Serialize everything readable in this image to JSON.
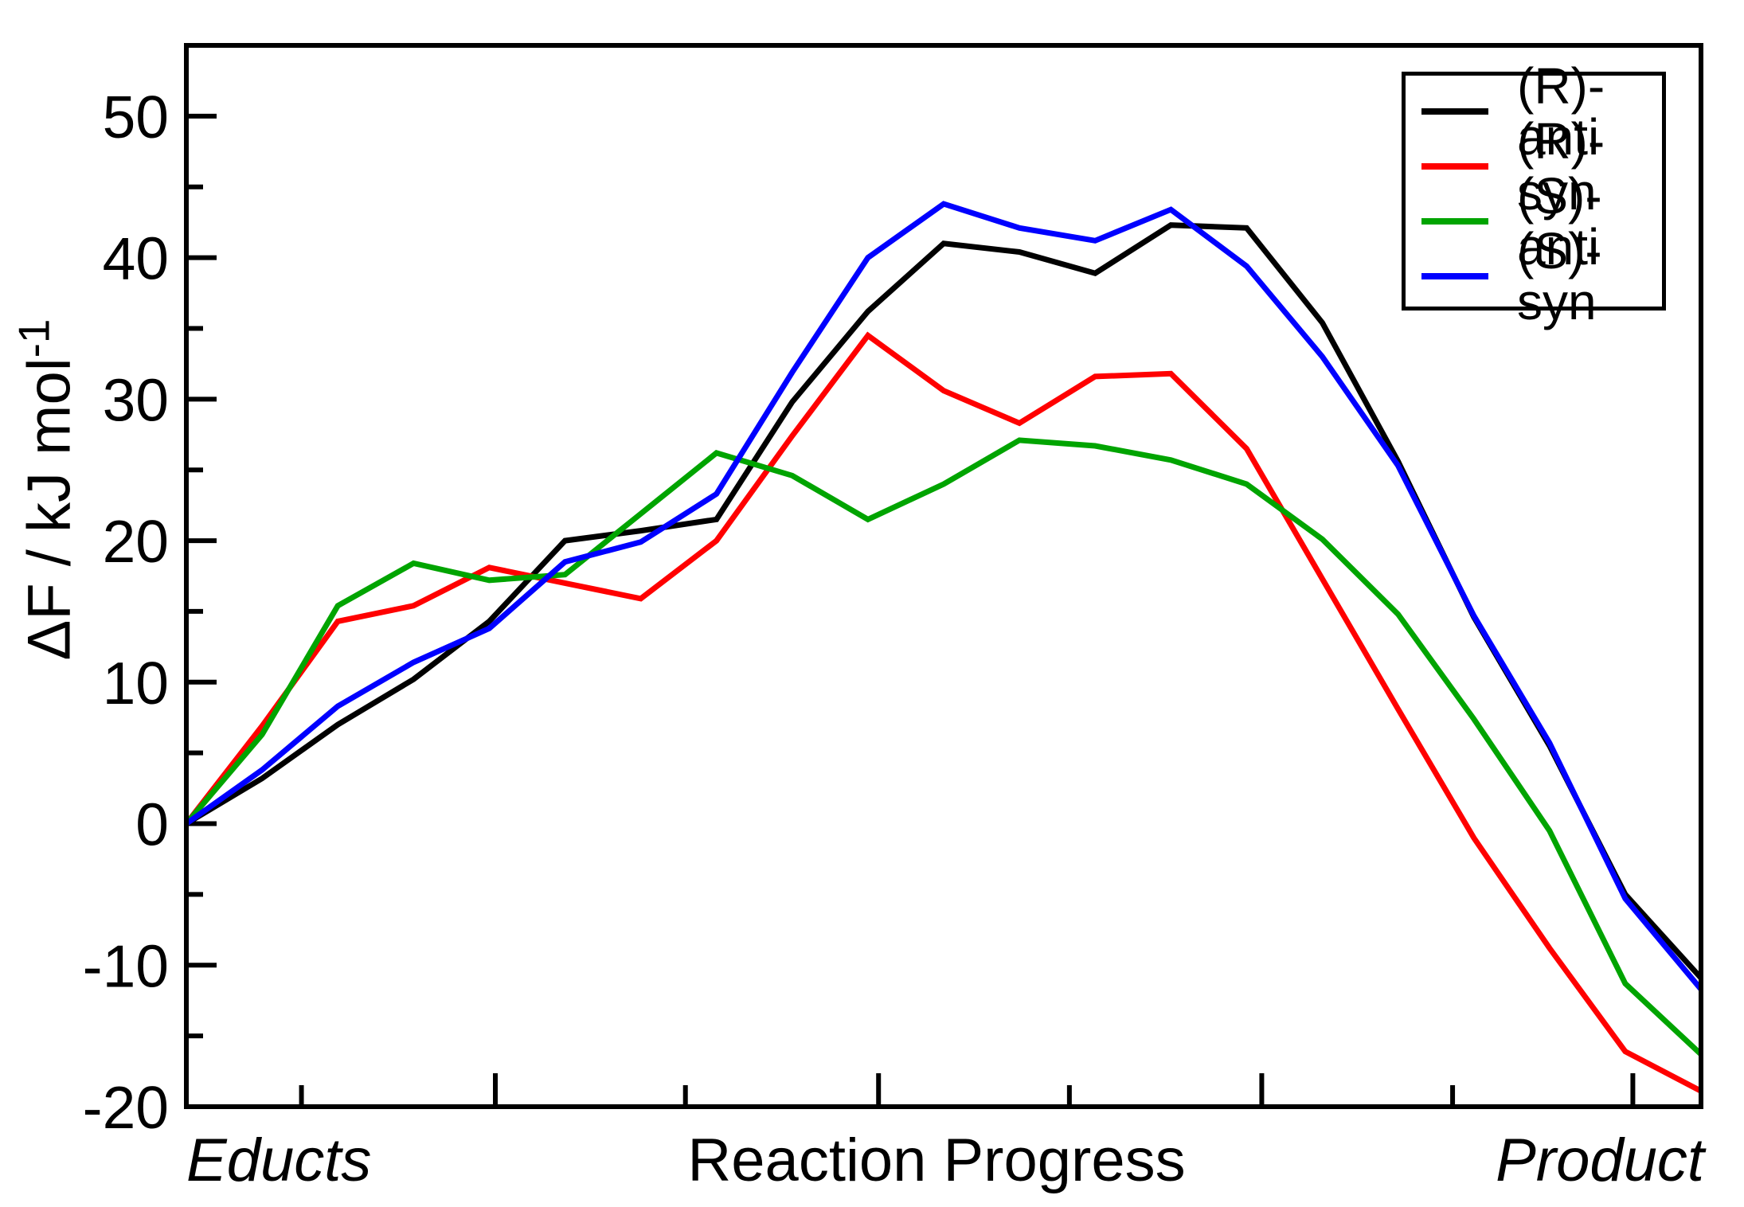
{
  "chart_data": {
    "type": "line",
    "title": "",
    "x_axis": {
      "label_left": "Educts",
      "label_center": "Reaction Progress",
      "label_right": "Product",
      "range": [
        0,
        20
      ],
      "major_tick_positions": [
        4.08,
        9.14,
        14.2,
        19.1
      ],
      "minor_tick_positions": [
        1.52,
        6.59,
        11.66,
        16.72
      ],
      "grid": false
    },
    "y_axis": {
      "label": "ΔF / kJ mol",
      "label_superscript": "-1",
      "range": [
        -20,
        55
      ],
      "major_ticks": [
        50,
        40,
        30,
        20,
        10,
        0,
        -10,
        -20
      ],
      "minor_ticks": [
        45,
        35,
        25,
        15,
        5,
        -5,
        -15
      ],
      "grid": false
    },
    "legend": {
      "position": "top-right"
    },
    "series": [
      {
        "name": "(R)-anti",
        "color": "#000000",
        "values": [
          0,
          3.2,
          7.0,
          10.2,
          14.3,
          20.0,
          20.7,
          21.5,
          29.8,
          36.2,
          41.0,
          40.4,
          38.9,
          42.3,
          42.1,
          35.4,
          25.6,
          14.6,
          5.5,
          -5.0,
          -10.9
        ]
      },
      {
        "name": "(R)-syn",
        "color": "#ff0000",
        "values": [
          0,
          6.9,
          14.3,
          15.4,
          18.1,
          17.0,
          15.9,
          20.0,
          27.4,
          34.5,
          30.6,
          28.3,
          31.6,
          31.8,
          26.5,
          17.3,
          8.1,
          -1.0,
          -8.8,
          -16.1,
          -18.9
        ]
      },
      {
        "name": "(S)-anti",
        "color": "#00a400",
        "values": [
          0,
          6.3,
          15.4,
          18.4,
          17.2,
          17.6,
          21.9,
          26.2,
          24.6,
          21.5,
          24.0,
          27.1,
          26.7,
          25.7,
          24.0,
          20.1,
          14.8,
          7.4,
          -0.5,
          -11.3,
          -16.3
        ]
      },
      {
        "name": "(S)-syn",
        "color": "#0000ff",
        "values": [
          0,
          3.8,
          8.3,
          11.4,
          13.8,
          18.5,
          19.9,
          23.3,
          31.9,
          40.0,
          43.8,
          42.1,
          41.2,
          43.4,
          39.4,
          33.0,
          25.3,
          14.7,
          5.7,
          -5.3,
          -11.7
        ]
      }
    ]
  }
}
